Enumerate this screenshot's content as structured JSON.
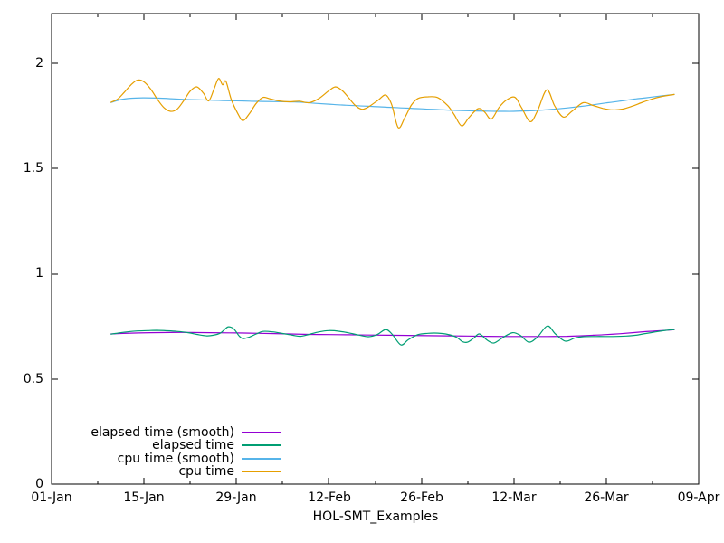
{
  "chart_data": {
    "type": "line",
    "title": "",
    "xlabel": "HOL-SMT_Examples",
    "ylabel": "",
    "grid": false,
    "legend_position": "inside-bottom-left",
    "axis_color": "#000000",
    "background_color": "#ffffff",
    "xlim_days": [
      0,
      98
    ],
    "ylim": [
      0,
      2.236
    ],
    "x_tick_labels": [
      "01-Jan",
      "15-Jan",
      "29-Jan",
      "12-Feb",
      "26-Feb",
      "12-Mar",
      "26-Mar",
      "09-Apr"
    ],
    "x_tick_days": [
      0,
      14,
      28,
      42,
      56,
      70,
      84,
      98
    ],
    "x_minor_tick_days": [
      7,
      21,
      35,
      49,
      63,
      77,
      91
    ],
    "y_tick_labels": [
      "0",
      "0.5",
      "1",
      "1.5",
      "2"
    ],
    "y_ticks": [
      0,
      0.5,
      1,
      1.5,
      2
    ],
    "series": [
      {
        "name": "elapsed time (smooth)",
        "color": "#9400d3",
        "points": [
          [
            9,
            0.714
          ],
          [
            12,
            0.718
          ],
          [
            15,
            0.72
          ],
          [
            18,
            0.721
          ],
          [
            21,
            0.721
          ],
          [
            24,
            0.72
          ],
          [
            27,
            0.719
          ],
          [
            30,
            0.718
          ],
          [
            33,
            0.716
          ],
          [
            36,
            0.714
          ],
          [
            39,
            0.712
          ],
          [
            42,
            0.711
          ],
          [
            45,
            0.71
          ],
          [
            48,
            0.709
          ],
          [
            51,
            0.708
          ],
          [
            54,
            0.707
          ],
          [
            57,
            0.706
          ],
          [
            60,
            0.705
          ],
          [
            63,
            0.704
          ],
          [
            66,
            0.703
          ],
          [
            69,
            0.702
          ],
          [
            72,
            0.702
          ],
          [
            75,
            0.702
          ],
          [
            78,
            0.703
          ],
          [
            80,
            0.705
          ],
          [
            82,
            0.708
          ],
          [
            84,
            0.711
          ],
          [
            86,
            0.715
          ],
          [
            88,
            0.72
          ],
          [
            90,
            0.725
          ],
          [
            92,
            0.729
          ],
          [
            94.3,
            0.734
          ]
        ]
      },
      {
        "name": "elapsed time",
        "color": "#009e73",
        "points": [
          [
            9,
            0.713
          ],
          [
            10,
            0.718
          ],
          [
            11.5,
            0.724
          ],
          [
            13,
            0.728
          ],
          [
            14.5,
            0.73
          ],
          [
            16,
            0.731
          ],
          [
            17.5,
            0.729
          ],
          [
            19,
            0.726
          ],
          [
            20.5,
            0.721
          ],
          [
            22,
            0.712
          ],
          [
            23.5,
            0.705
          ],
          [
            24.5,
            0.708
          ],
          [
            25.5,
            0.717
          ],
          [
            26.2,
            0.735
          ],
          [
            26.8,
            0.748
          ],
          [
            27.6,
            0.738
          ],
          [
            28.4,
            0.705
          ],
          [
            29,
            0.692
          ],
          [
            30,
            0.7
          ],
          [
            31,
            0.714
          ],
          [
            32,
            0.726
          ],
          [
            33.5,
            0.724
          ],
          [
            35,
            0.716
          ],
          [
            36.5,
            0.708
          ],
          [
            37.7,
            0.703
          ],
          [
            39,
            0.712
          ],
          [
            40.5,
            0.724
          ],
          [
            42,
            0.73
          ],
          [
            43.5,
            0.727
          ],
          [
            45,
            0.719
          ],
          [
            46.5,
            0.709
          ],
          [
            48,
            0.701
          ],
          [
            49.3,
            0.711
          ],
          [
            50.6,
            0.735
          ],
          [
            51.6,
            0.712
          ],
          [
            52.9,
            0.662
          ],
          [
            54,
            0.686
          ],
          [
            55.5,
            0.711
          ],
          [
            57,
            0.717
          ],
          [
            58.5,
            0.718
          ],
          [
            60,
            0.712
          ],
          [
            61.3,
            0.699
          ],
          [
            62.2,
            0.678
          ],
          [
            63,
            0.675
          ],
          [
            64,
            0.696
          ],
          [
            64.8,
            0.714
          ],
          [
            66,
            0.684
          ],
          [
            67,
            0.671
          ],
          [
            68.3,
            0.696
          ],
          [
            69.8,
            0.72
          ],
          [
            71,
            0.707
          ],
          [
            72.3,
            0.675
          ],
          [
            73.6,
            0.7
          ],
          [
            75.1,
            0.752
          ],
          [
            76.3,
            0.714
          ],
          [
            77.8,
            0.68
          ],
          [
            79.2,
            0.694
          ],
          [
            80.5,
            0.701
          ],
          [
            82.5,
            0.702
          ],
          [
            85,
            0.702
          ],
          [
            87,
            0.704
          ],
          [
            88.5,
            0.708
          ],
          [
            90,
            0.716
          ],
          [
            91.5,
            0.724
          ],
          [
            93,
            0.731
          ],
          [
            94.3,
            0.735
          ]
        ]
      },
      {
        "name": "cpu time (smooth)",
        "color": "#56b4e9",
        "points": [
          [
            9,
            1.814
          ],
          [
            10.5,
            1.828
          ],
          [
            12,
            1.834
          ],
          [
            14,
            1.836
          ],
          [
            16,
            1.835
          ],
          [
            18,
            1.832
          ],
          [
            20,
            1.829
          ],
          [
            22,
            1.827
          ],
          [
            24,
            1.825
          ],
          [
            26,
            1.823
          ],
          [
            28,
            1.822
          ],
          [
            30,
            1.82
          ],
          [
            32,
            1.819
          ],
          [
            34,
            1.818
          ],
          [
            36,
            1.817
          ],
          [
            38,
            1.815
          ],
          [
            40,
            1.81
          ],
          [
            42,
            1.806
          ],
          [
            44,
            1.802
          ],
          [
            46,
            1.799
          ],
          [
            48,
            1.796
          ],
          [
            50,
            1.793
          ],
          [
            52,
            1.79
          ],
          [
            54,
            1.787
          ],
          [
            56,
            1.784
          ],
          [
            58,
            1.781
          ],
          [
            60,
            1.778
          ],
          [
            62,
            1.776
          ],
          [
            64,
            1.774
          ],
          [
            66,
            1.773
          ],
          [
            68,
            1.772
          ],
          [
            70,
            1.772
          ],
          [
            72,
            1.774
          ],
          [
            74,
            1.777
          ],
          [
            76,
            1.782
          ],
          [
            78,
            1.788
          ],
          [
            80,
            1.795
          ],
          [
            82,
            1.803
          ],
          [
            84,
            1.812
          ],
          [
            86,
            1.82
          ],
          [
            88,
            1.829
          ],
          [
            90,
            1.836
          ],
          [
            92,
            1.844
          ],
          [
            94.3,
            1.852
          ]
        ]
      },
      {
        "name": "cpu time",
        "color": "#e69f00",
        "points": [
          [
            9,
            1.815
          ],
          [
            10,
            1.83
          ],
          [
            11,
            1.862
          ],
          [
            12,
            1.897
          ],
          [
            13,
            1.92
          ],
          [
            14,
            1.912
          ],
          [
            15,
            1.878
          ],
          [
            16,
            1.83
          ],
          [
            17,
            1.79
          ],
          [
            18,
            1.772
          ],
          [
            19,
            1.782
          ],
          [
            20,
            1.822
          ],
          [
            21,
            1.868
          ],
          [
            22,
            1.888
          ],
          [
            23,
            1.858
          ],
          [
            23.8,
            1.822
          ],
          [
            24.6,
            1.878
          ],
          [
            25.3,
            1.928
          ],
          [
            25.9,
            1.898
          ],
          [
            26.4,
            1.915
          ],
          [
            27.2,
            1.83
          ],
          [
            28.2,
            1.762
          ],
          [
            29,
            1.728
          ],
          [
            30,
            1.763
          ],
          [
            31,
            1.81
          ],
          [
            32,
            1.838
          ],
          [
            33,
            1.832
          ],
          [
            34.5,
            1.821
          ],
          [
            36,
            1.817
          ],
          [
            37.5,
            1.82
          ],
          [
            39,
            1.813
          ],
          [
            40.5,
            1.833
          ],
          [
            42,
            1.87
          ],
          [
            43,
            1.888
          ],
          [
            44,
            1.871
          ],
          [
            45,
            1.836
          ],
          [
            46,
            1.8
          ],
          [
            47,
            1.782
          ],
          [
            48,
            1.793
          ],
          [
            49.5,
            1.826
          ],
          [
            50.6,
            1.849
          ],
          [
            51.5,
            1.805
          ],
          [
            52.5,
            1.695
          ],
          [
            53.5,
            1.742
          ],
          [
            54.5,
            1.802
          ],
          [
            55.5,
            1.833
          ],
          [
            57,
            1.841
          ],
          [
            58.5,
            1.837
          ],
          [
            60,
            1.799
          ],
          [
            61,
            1.755
          ],
          [
            62.1,
            1.703
          ],
          [
            63.2,
            1.742
          ],
          [
            64.6,
            1.785
          ],
          [
            65.6,
            1.768
          ],
          [
            66.6,
            1.735
          ],
          [
            67.8,
            1.792
          ],
          [
            69,
            1.828
          ],
          [
            70.2,
            1.838
          ],
          [
            71.2,
            1.788
          ],
          [
            72.5,
            1.723
          ],
          [
            73.6,
            1.775
          ],
          [
            75,
            1.874
          ],
          [
            76.2,
            1.798
          ],
          [
            77.5,
            1.745
          ],
          [
            78.8,
            1.772
          ],
          [
            80.5,
            1.813
          ],
          [
            82,
            1.8
          ],
          [
            83.5,
            1.786
          ],
          [
            85,
            1.779
          ],
          [
            86.5,
            1.783
          ],
          [
            88,
            1.797
          ],
          [
            89.5,
            1.815
          ],
          [
            91,
            1.831
          ],
          [
            92.5,
            1.843
          ],
          [
            94.3,
            1.852
          ]
        ]
      }
    ]
  }
}
